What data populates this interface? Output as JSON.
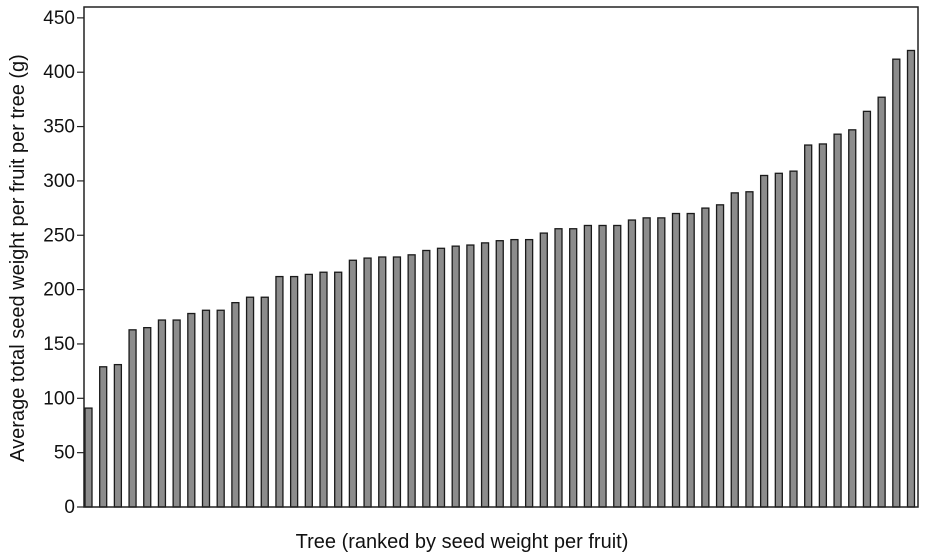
{
  "chart_data": {
    "type": "bar",
    "title": "",
    "xlabel": "Tree (ranked by seed weight per fruit)",
    "ylabel": "Average total seed weight per fruit per tree (g)",
    "ylim": [
      0,
      460
    ],
    "yticks": [
      0,
      50,
      100,
      150,
      200,
      250,
      300,
      350,
      400,
      450
    ],
    "grid": false,
    "bar_color": "#8c8c8c",
    "values": [
      91,
      129,
      131,
      163,
      165,
      172,
      172,
      178,
      181,
      181,
      188,
      193,
      193,
      212,
      212,
      214,
      216,
      216,
      227,
      229,
      230,
      230,
      232,
      236,
      238,
      240,
      241,
      243,
      245,
      246,
      246,
      252,
      256,
      256,
      259,
      259,
      259,
      264,
      266,
      266,
      270,
      270,
      275,
      278,
      289,
      290,
      305,
      307,
      309,
      333,
      334,
      343,
      347,
      364,
      377,
      412,
      420
    ]
  }
}
